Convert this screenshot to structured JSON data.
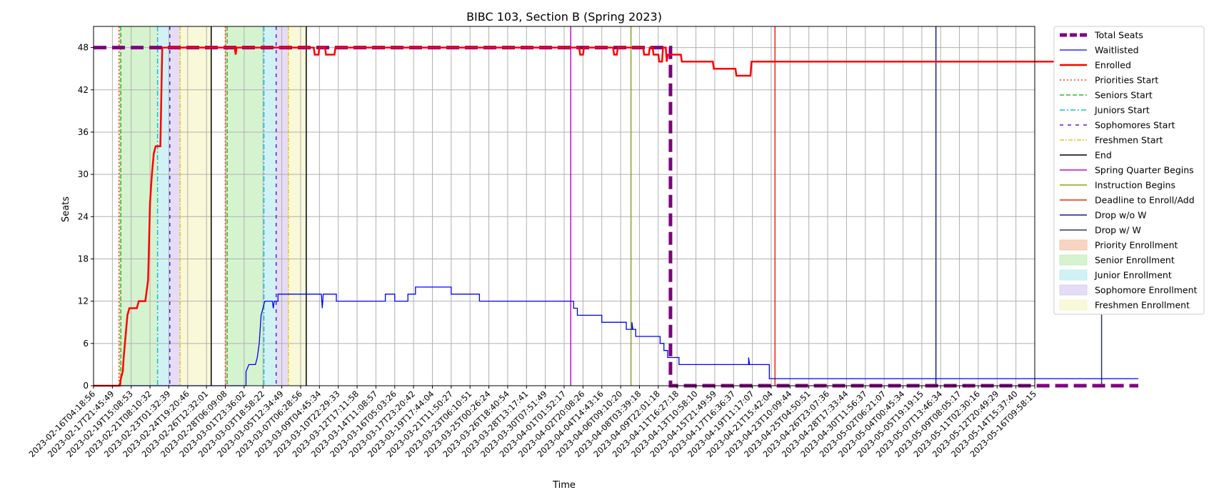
{
  "chart_data": {
    "type": "line",
    "title": "BIBC 103, Section B (Spring 2023)",
    "xlabel": "Time",
    "ylabel": "Seats",
    "ylim": [
      0,
      51
    ],
    "yticks": [
      0,
      6,
      12,
      18,
      24,
      30,
      36,
      42,
      48
    ],
    "grid": true,
    "legend_position": "outside-right",
    "x_tick_labels": [
      "2023-02-16T04:18:56",
      "2023-02-17T21:45:49",
      "2023-02-19T15:08:53",
      "2023-02-21T08:10:32",
      "2023-02-23T01:32:39",
      "2023-02-24T19:20:46",
      "2023-02-26T12:32:01",
      "2023-02-28T06:09:08",
      "2023-03-01T23:36:02",
      "2023-03-03T18:58:22",
      "2023-03-05T12:34:49",
      "2023-03-07T06:28:56",
      "2023-03-09T04:45:34",
      "2023-03-10T22:29:33",
      "2023-03-12T17:11:58",
      "2023-03-14T11:08:57",
      "2023-03-16T05:03:26",
      "2023-03-17T23:20:42",
      "2023-03-19T17:44:04",
      "2023-03-21T11:50:27",
      "2023-03-23T06:10:51",
      "2023-03-25T00:26:24",
      "2023-03-26T18:40:54",
      "2023-03-28T13:17:41",
      "2023-03-30T07:51:49",
      "2023-04-01T01:52:17",
      "2023-04-02T20:08:26",
      "2023-04-04T14:43:16",
      "2023-04-06T09:10:20",
      "2023-04-08T03:39:18",
      "2023-04-09T22:01:18",
      "2023-04-11T16:27:18",
      "2023-04-13T10:58:10",
      "2023-04-15T21:49:59",
      "2023-04-17T16:36:37",
      "2023-04-19T11:17:07",
      "2023-04-21T15:42:04",
      "2023-04-23T10:09:44",
      "2023-04-25T04:50:51",
      "2023-04-26T23:07:36",
      "2023-04-28T17:33:44",
      "2023-04-30T11:56:37",
      "2023-05-02T06:21:07",
      "2023-05-04T00:45:34",
      "2023-05-05T19:19:15",
      "2023-05-07T13:46:34",
      "2023-05-09T08:05:17",
      "2023-05-11T02:30:16",
      "2023-05-12T20:49:29",
      "2023-05-14T15:37:40",
      "2023-05-16T09:58:15"
    ],
    "regions": [
      {
        "name": "Priority Enrollment",
        "color": "#f4c7ad",
        "spans": [
          [
            1.35,
            1.45
          ],
          [
            7.0,
            7.1
          ]
        ]
      },
      {
        "name": "Senior Enrollment",
        "color": "#c8efc0",
        "spans": [
          [
            1.45,
            3.4
          ],
          [
            7.1,
            9.05
          ]
        ]
      },
      {
        "name": "Junior Enrollment",
        "color": "#c2eef0",
        "spans": [
          [
            3.4,
            4.05
          ],
          [
            9.05,
            9.7
          ]
        ]
      },
      {
        "name": "Sophomore Enrollment",
        "color": "#ddd0f2",
        "spans": [
          [
            4.05,
            4.6
          ],
          [
            9.7,
            10.35
          ]
        ]
      },
      {
        "name": "Freshmen Enrollment",
        "color": "#f7f6cc",
        "spans": [
          [
            4.6,
            6.25
          ],
          [
            10.35,
            11.3
          ]
        ]
      }
    ],
    "markers": [
      {
        "name": "Priorities Start",
        "color": "#ff3b1f",
        "dash": "2,3",
        "x": [
          1.35,
          7.0
        ]
      },
      {
        "name": "Seniors Start",
        "color": "#22c322",
        "dash": "6,3",
        "x": [
          1.45,
          7.1
        ]
      },
      {
        "name": "Juniors Start",
        "color": "#17becf",
        "dash": "7,3,2,3",
        "x": [
          3.4,
          9.05
        ]
      },
      {
        "name": "Sophomores Start",
        "color": "#5a1fcf",
        "dash": "5,6",
        "x": [
          4.05,
          9.7
        ]
      },
      {
        "name": "Freshmen Start",
        "color": "#e6c619",
        "dash": "6,2,2,2",
        "x": [
          4.6,
          10.35
        ]
      },
      {
        "name": "End",
        "color": "#000000",
        "dash": "",
        "x": [
          6.25,
          11.3
        ]
      },
      {
        "name": "Spring Quarter Begins",
        "color": "#c20fbf",
        "dash": "",
        "x": [
          25.35
        ]
      },
      {
        "name": "Instruction Begins",
        "color": "#8aa41c",
        "dash": "",
        "x": [
          28.55
        ]
      },
      {
        "name": "Deadline to Enroll/Add",
        "color": "#e8290c",
        "dash": "",
        "x": [
          36.2
        ]
      },
      {
        "name": "Drop w/o W",
        "color": "#1a1a8c",
        "dash": "",
        "x": [
          44.75
        ]
      },
      {
        "name": "Drop w/ W",
        "color": "#2b3a55",
        "dash": "",
        "x": [
          53.55
        ]
      }
    ],
    "series": [
      {
        "name": "Total Seats",
        "color": "#800080",
        "style": "dashed-thick",
        "points": [
          [
            0,
            48
          ],
          [
            30.65,
            48
          ],
          [
            30.65,
            0
          ],
          [
            55.5,
            0
          ]
        ]
      },
      {
        "name": "Waitlisted",
        "color": "#0000ff",
        "style": "solid-thin",
        "points": [
          [
            0,
            0
          ],
          [
            8.1,
            0
          ],
          [
            8.1,
            2
          ],
          [
            8.25,
            3
          ],
          [
            8.6,
            3
          ],
          [
            8.7,
            4
          ],
          [
            8.8,
            6
          ],
          [
            8.9,
            10
          ],
          [
            9.0,
            11
          ],
          [
            9.1,
            12
          ],
          [
            9.5,
            12
          ],
          [
            9.55,
            11
          ],
          [
            9.6,
            12
          ],
          [
            9.8,
            12
          ],
          [
            9.8,
            13
          ],
          [
            12.1,
            13
          ],
          [
            12.15,
            11
          ],
          [
            12.2,
            13
          ],
          [
            12.9,
            13
          ],
          [
            12.9,
            12
          ],
          [
            15.5,
            12
          ],
          [
            15.5,
            13
          ],
          [
            16.0,
            13
          ],
          [
            16.0,
            12
          ],
          [
            16.7,
            12
          ],
          [
            16.7,
            13
          ],
          [
            17.1,
            13
          ],
          [
            17.1,
            14
          ],
          [
            19.0,
            14
          ],
          [
            19.0,
            13
          ],
          [
            20.5,
            13
          ],
          [
            20.5,
            12
          ],
          [
            25.5,
            12
          ],
          [
            25.5,
            11
          ],
          [
            25.7,
            11
          ],
          [
            25.7,
            10
          ],
          [
            27.0,
            10
          ],
          [
            27.0,
            9
          ],
          [
            28.3,
            9
          ],
          [
            28.3,
            8
          ],
          [
            28.6,
            8
          ],
          [
            28.6,
            9
          ],
          [
            28.65,
            8
          ],
          [
            28.8,
            8
          ],
          [
            28.8,
            7
          ],
          [
            30.1,
            7
          ],
          [
            30.1,
            6
          ],
          [
            30.3,
            6
          ],
          [
            30.3,
            5
          ],
          [
            30.5,
            5
          ],
          [
            30.5,
            4
          ],
          [
            31.1,
            4
          ],
          [
            31.1,
            3
          ],
          [
            34.8,
            3
          ],
          [
            34.8,
            4
          ],
          [
            34.85,
            3
          ],
          [
            35.9,
            3
          ],
          [
            35.9,
            1
          ],
          [
            55.5,
            1
          ]
        ]
      },
      {
        "name": "Enrolled",
        "color": "#ff0000",
        "style": "solid-thick",
        "points": [
          [
            0,
            0
          ],
          [
            1.4,
            0
          ],
          [
            1.45,
            1
          ],
          [
            1.55,
            2
          ],
          [
            1.6,
            4
          ],
          [
            1.7,
            7
          ],
          [
            1.8,
            10
          ],
          [
            1.9,
            11
          ],
          [
            2.3,
            11
          ],
          [
            2.4,
            12
          ],
          [
            2.75,
            12
          ],
          [
            2.8,
            13
          ],
          [
            2.9,
            15
          ],
          [
            3.0,
            26
          ],
          [
            3.1,
            30
          ],
          [
            3.2,
            33
          ],
          [
            3.3,
            34
          ],
          [
            3.55,
            34
          ],
          [
            3.65,
            48
          ],
          [
            7.5,
            48
          ],
          [
            7.55,
            47
          ],
          [
            7.6,
            48
          ],
          [
            11.7,
            48
          ],
          [
            11.75,
            47
          ],
          [
            11.95,
            47
          ],
          [
            12.0,
            48
          ],
          [
            12.3,
            48
          ],
          [
            12.35,
            47
          ],
          [
            12.8,
            47
          ],
          [
            12.85,
            48
          ],
          [
            25.8,
            48
          ],
          [
            25.85,
            47
          ],
          [
            26.0,
            47
          ],
          [
            26.05,
            48
          ],
          [
            27.6,
            48
          ],
          [
            27.65,
            47
          ],
          [
            27.8,
            47
          ],
          [
            27.85,
            48
          ],
          [
            29.2,
            48
          ],
          [
            29.25,
            47
          ],
          [
            29.5,
            47
          ],
          [
            29.55,
            48
          ],
          [
            29.7,
            48
          ],
          [
            29.75,
            47
          ],
          [
            30.0,
            47
          ],
          [
            30.05,
            46
          ],
          [
            30.2,
            46
          ],
          [
            30.25,
            48
          ],
          [
            30.4,
            48
          ],
          [
            30.45,
            46
          ],
          [
            30.5,
            47
          ],
          [
            31.2,
            47
          ],
          [
            31.25,
            46
          ],
          [
            32.9,
            46
          ],
          [
            32.95,
            45
          ],
          [
            34.1,
            45
          ],
          [
            34.15,
            44
          ],
          [
            34.9,
            44
          ],
          [
            34.95,
            46
          ],
          [
            55.5,
            46
          ]
        ]
      }
    ]
  }
}
